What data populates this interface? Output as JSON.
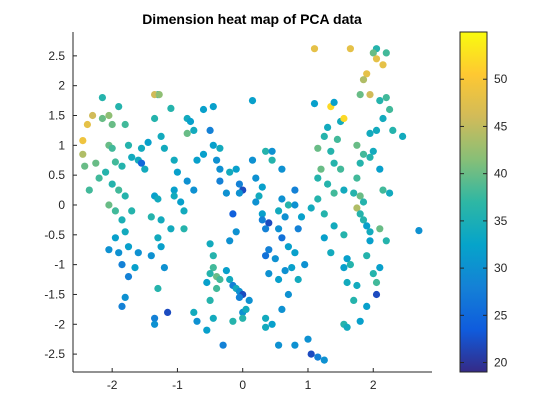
{
  "chart_data": {
    "type": "scatter",
    "title": "Dimension heat map of PCA data",
    "xlabel": "",
    "ylabel": "",
    "xlim": [
      -2.6,
      2.9
    ],
    "ylim": [
      -2.8,
      2.9
    ],
    "xticks": [
      -2,
      -1,
      0,
      1,
      2
    ],
    "yticks": [
      -2.5,
      -2,
      -1.5,
      -1,
      -0.5,
      0,
      0.5,
      1,
      1.5,
      2,
      2.5
    ],
    "grid": false,
    "colorbar": {
      "min": 19,
      "max": 55,
      "ticks": [
        20,
        25,
        30,
        35,
        40,
        45,
        50
      ],
      "colormap": "parula"
    },
    "points": [
      {
        "x": -2.45,
        "y": 1.08,
        "v": 49
      },
      {
        "x": -2.38,
        "y": 1.35,
        "v": 48
      },
      {
        "x": -2.3,
        "y": 1.5,
        "v": 46
      },
      {
        "x": -2.45,
        "y": 0.85,
        "v": 44
      },
      {
        "x": -2.42,
        "y": 0.65,
        "v": 40
      },
      {
        "x": -2.25,
        "y": 0.7,
        "v": 40
      },
      {
        "x": -2.2,
        "y": 0.45,
        "v": 38
      },
      {
        "x": -2.35,
        "y": 0.25,
        "v": 38
      },
      {
        "x": -2.15,
        "y": 1.45,
        "v": 40
      },
      {
        "x": -2.05,
        "y": 1.5,
        "v": 42
      },
      {
        "x": -2.0,
        "y": 1.35,
        "v": 40
      },
      {
        "x": -2.05,
        "y": 1.0,
        "v": 40
      },
      {
        "x": -2.0,
        "y": 0.95,
        "v": 38
      },
      {
        "x": -1.95,
        "y": 0.72,
        "v": 38
      },
      {
        "x": -1.85,
        "y": 0.65,
        "v": 36
      },
      {
        "x": -2.1,
        "y": 0.55,
        "v": 36
      },
      {
        "x": -2.0,
        "y": 0.35,
        "v": 36
      },
      {
        "x": -1.9,
        "y": 0.25,
        "v": 38
      },
      {
        "x": -1.8,
        "y": 0.15,
        "v": 36
      },
      {
        "x": -2.05,
        "y": 0.0,
        "v": 40
      },
      {
        "x": -1.95,
        "y": -0.1,
        "v": 38
      },
      {
        "x": -1.85,
        "y": -0.25,
        "v": 35
      },
      {
        "x": -1.8,
        "y": -0.45,
        "v": 34
      },
      {
        "x": -1.95,
        "y": -0.55,
        "v": 32
      },
      {
        "x": -2.05,
        "y": -0.75,
        "v": 30
      },
      {
        "x": -1.9,
        "y": -0.8,
        "v": 30
      },
      {
        "x": -1.75,
        "y": -0.7,
        "v": 32
      },
      {
        "x": -1.85,
        "y": -1.0,
        "v": 28
      },
      {
        "x": -2.15,
        "y": 1.8,
        "v": 36
      },
      {
        "x": -1.9,
        "y": 1.65,
        "v": 36
      },
      {
        "x": -1.8,
        "y": 1.35,
        "v": 38
      },
      {
        "x": -1.75,
        "y": 1.0,
        "v": 36
      },
      {
        "x": -1.7,
        "y": 0.8,
        "v": 34
      },
      {
        "x": -1.55,
        "y": 0.95,
        "v": 34
      },
      {
        "x": -1.6,
        "y": 0.75,
        "v": 34
      },
      {
        "x": -1.55,
        "y": 0.7,
        "v": 25
      },
      {
        "x": -1.5,
        "y": 0.6,
        "v": 34
      },
      {
        "x": -1.7,
        "y": -0.1,
        "v": 36
      },
      {
        "x": -1.6,
        "y": -0.8,
        "v": 30
      },
      {
        "x": -1.65,
        "y": -1.05,
        "v": 32
      },
      {
        "x": -1.75,
        "y": -1.2,
        "v": 28
      },
      {
        "x": -1.8,
        "y": -1.55,
        "v": 30
      },
      {
        "x": -1.85,
        "y": -1.7,
        "v": 28
      },
      {
        "x": -1.3,
        "y": 1.85,
        "v": 34
      },
      {
        "x": -1.35,
        "y": 1.85,
        "v": 46
      },
      {
        "x": -1.28,
        "y": 1.85,
        "v": 42
      },
      {
        "x": -1.1,
        "y": 1.62,
        "v": 36
      },
      {
        "x": -1.35,
        "y": 1.45,
        "v": 36
      },
      {
        "x": -1.25,
        "y": 1.15,
        "v": 34
      },
      {
        "x": -1.45,
        "y": 1.05,
        "v": 32
      },
      {
        "x": -1.2,
        "y": 0.95,
        "v": 34
      },
      {
        "x": -1.35,
        "y": 0.15,
        "v": 32
      },
      {
        "x": -1.3,
        "y": 0.1,
        "v": 34
      },
      {
        "x": -1.4,
        "y": -0.2,
        "v": 36
      },
      {
        "x": -1.25,
        "y": -0.25,
        "v": 34
      },
      {
        "x": -1.1,
        "y": -0.4,
        "v": 34
      },
      {
        "x": -1.3,
        "y": -0.55,
        "v": 34
      },
      {
        "x": -1.25,
        "y": -0.7,
        "v": 32
      },
      {
        "x": -1.4,
        "y": -0.85,
        "v": 30
      },
      {
        "x": -1.2,
        "y": -1.05,
        "v": 30
      },
      {
        "x": -1.05,
        "y": 0.75,
        "v": 34
      },
      {
        "x": -1.0,
        "y": 0.55,
        "v": 32
      },
      {
        "x": -1.05,
        "y": 0.25,
        "v": 32
      },
      {
        "x": -1.05,
        "y": 0.15,
        "v": 34
      },
      {
        "x": -0.95,
        "y": 0.05,
        "v": 32
      },
      {
        "x": -0.9,
        "y": -0.1,
        "v": 34
      },
      {
        "x": -0.9,
        "y": -0.4,
        "v": 36
      },
      {
        "x": -1.3,
        "y": -1.4,
        "v": 36
      },
      {
        "x": -1.35,
        "y": -1.9,
        "v": 28
      },
      {
        "x": -1.35,
        "y": -2.0,
        "v": 30
      },
      {
        "x": -1.15,
        "y": -1.8,
        "v": 22
      },
      {
        "x": -0.85,
        "y": 1.45,
        "v": 34
      },
      {
        "x": -0.8,
        "y": 1.4,
        "v": 32
      },
      {
        "x": -0.85,
        "y": 1.2,
        "v": 40
      },
      {
        "x": -0.75,
        "y": 1.25,
        "v": 34
      },
      {
        "x": -0.7,
        "y": 0.75,
        "v": 32
      },
      {
        "x": -0.6,
        "y": 0.85,
        "v": 32
      },
      {
        "x": -0.85,
        "y": 0.4,
        "v": 30
      },
      {
        "x": -0.75,
        "y": 0.25,
        "v": 30
      },
      {
        "x": -0.6,
        "y": 1.6,
        "v": 32
      },
      {
        "x": -0.45,
        "y": 1.65,
        "v": 32
      },
      {
        "x": -0.5,
        "y": 1.25,
        "v": 28
      },
      {
        "x": -0.45,
        "y": 1.0,
        "v": 32
      },
      {
        "x": -0.35,
        "y": 0.95,
        "v": 34
      },
      {
        "x": -0.4,
        "y": 0.75,
        "v": 30
      },
      {
        "x": -0.35,
        "y": 0.6,
        "v": 30
      },
      {
        "x": -0.2,
        "y": 0.55,
        "v": 34
      },
      {
        "x": -0.1,
        "y": 0.6,
        "v": 32
      },
      {
        "x": -0.35,
        "y": 0.4,
        "v": 28
      },
      {
        "x": -0.25,
        "y": 0.2,
        "v": 30
      },
      {
        "x": -0.05,
        "y": 0.35,
        "v": 28
      },
      {
        "x": 0.0,
        "y": 0.25,
        "v": 22
      },
      {
        "x": -0.05,
        "y": 0.2,
        "v": 30
      },
      {
        "x": -0.15,
        "y": -0.15,
        "v": 24
      },
      {
        "x": -0.1,
        "y": -0.45,
        "v": 30
      },
      {
        "x": -0.5,
        "y": -0.65,
        "v": 34
      },
      {
        "x": -0.45,
        "y": -0.85,
        "v": 36
      },
      {
        "x": -0.45,
        "y": -1.05,
        "v": 38
      },
      {
        "x": -0.4,
        "y": -1.2,
        "v": 40
      },
      {
        "x": -0.4,
        "y": -1.4,
        "v": 38
      },
      {
        "x": -0.5,
        "y": -1.15,
        "v": 36
      },
      {
        "x": -0.55,
        "y": -1.3,
        "v": 32
      },
      {
        "x": -0.35,
        "y": -1.25,
        "v": 38
      },
      {
        "x": -0.2,
        "y": -0.6,
        "v": 30
      },
      {
        "x": -0.25,
        "y": -1.1,
        "v": 32
      },
      {
        "x": -0.2,
        "y": -1.25,
        "v": 34
      },
      {
        "x": -0.15,
        "y": -1.35,
        "v": 28
      },
      {
        "x": -0.1,
        "y": -1.4,
        "v": 34
      },
      {
        "x": -0.05,
        "y": -1.45,
        "v": 30
      },
      {
        "x": 0.0,
        "y": -1.5,
        "v": 22
      },
      {
        "x": -0.05,
        "y": -1.55,
        "v": 28
      },
      {
        "x": -0.5,
        "y": -1.6,
        "v": 36
      },
      {
        "x": -0.45,
        "y": -1.9,
        "v": 34
      },
      {
        "x": -0.15,
        "y": -1.95,
        "v": 36
      },
      {
        "x": -0.75,
        "y": -1.8,
        "v": 34
      },
      {
        "x": -0.7,
        "y": -1.95,
        "v": 30
      },
      {
        "x": -0.55,
        "y": -2.1,
        "v": 32
      },
      {
        "x": -0.3,
        "y": -2.35,
        "v": 28
      },
      {
        "x": 0.0,
        "y": -1.8,
        "v": 30
      },
      {
        "x": 0.0,
        "y": -1.9,
        "v": 36
      },
      {
        "x": 0.05,
        "y": -1.75,
        "v": 34
      },
      {
        "x": 0.1,
        "y": -1.6,
        "v": 30
      },
      {
        "x": 0.15,
        "y": 1.75,
        "v": 32
      },
      {
        "x": 0.15,
        "y": 0.75,
        "v": 30
      },
      {
        "x": 0.2,
        "y": 0.45,
        "v": 30
      },
      {
        "x": 0.35,
        "y": 0.9,
        "v": 36
      },
      {
        "x": 0.45,
        "y": 0.9,
        "v": 30
      },
      {
        "x": 0.45,
        "y": 0.75,
        "v": 36
      },
      {
        "x": 0.6,
        "y": 0.6,
        "v": 30
      },
      {
        "x": 0.3,
        "y": 0.3,
        "v": 32
      },
      {
        "x": 0.25,
        "y": 0.15,
        "v": 34
      },
      {
        "x": 0.2,
        "y": 0.05,
        "v": 30
      },
      {
        "x": 0.3,
        "y": -0.15,
        "v": 32
      },
      {
        "x": 0.3,
        "y": -0.25,
        "v": 28
      },
      {
        "x": 0.4,
        "y": -0.3,
        "v": 22
      },
      {
        "x": 0.35,
        "y": -0.4,
        "v": 28
      },
      {
        "x": 0.55,
        "y": -0.4,
        "v": 30
      },
      {
        "x": 0.6,
        "y": 0.1,
        "v": 30
      },
      {
        "x": 0.55,
        "y": -0.1,
        "v": 34
      },
      {
        "x": 0.65,
        "y": -0.2,
        "v": 30
      },
      {
        "x": 0.7,
        "y": 0.0,
        "v": 36
      },
      {
        "x": 0.8,
        "y": 0.25,
        "v": 28
      },
      {
        "x": 0.8,
        "y": 0.0,
        "v": 30
      },
      {
        "x": 0.9,
        "y": -0.2,
        "v": 32
      },
      {
        "x": 0.85,
        "y": -0.4,
        "v": 28
      },
      {
        "x": 0.6,
        "y": -0.55,
        "v": 26
      },
      {
        "x": 0.7,
        "y": -0.7,
        "v": 32
      },
      {
        "x": 0.4,
        "y": -0.75,
        "v": 28
      },
      {
        "x": 0.35,
        "y": -0.85,
        "v": 26
      },
      {
        "x": 0.5,
        "y": -0.9,
        "v": 30
      },
      {
        "x": 0.4,
        "y": -1.15,
        "v": 30
      },
      {
        "x": 0.55,
        "y": -1.25,
        "v": 32
      },
      {
        "x": 0.65,
        "y": -1.1,
        "v": 30
      },
      {
        "x": 0.75,
        "y": -1.05,
        "v": 32
      },
      {
        "x": 0.8,
        "y": -0.8,
        "v": 32
      },
      {
        "x": 0.85,
        "y": -1.25,
        "v": 34
      },
      {
        "x": 0.95,
        "y": -1.0,
        "v": 30
      },
      {
        "x": 0.7,
        "y": -1.5,
        "v": 30
      },
      {
        "x": 0.6,
        "y": -1.75,
        "v": 30
      },
      {
        "x": 0.45,
        "y": -2.0,
        "v": 32
      },
      {
        "x": 0.35,
        "y": -2.05,
        "v": 34
      },
      {
        "x": 0.35,
        "y": -1.9,
        "v": 34
      },
      {
        "x": 0.55,
        "y": -2.35,
        "v": 30
      },
      {
        "x": 0.8,
        "y": -2.35,
        "v": 30
      },
      {
        "x": 1.0,
        "y": -2.25,
        "v": 30
      },
      {
        "x": 1.15,
        "y": -2.55,
        "v": 28
      },
      {
        "x": 1.25,
        "y": -2.6,
        "v": 30
      },
      {
        "x": 1.05,
        "y": -2.5,
        "v": 22
      },
      {
        "x": 1.1,
        "y": 2.62,
        "v": 48
      },
      {
        "x": 1.65,
        "y": 2.62,
        "v": 48
      },
      {
        "x": 1.1,
        "y": 1.7,
        "v": 32
      },
      {
        "x": 1.35,
        "y": 1.65,
        "v": 52
      },
      {
        "x": 1.4,
        "y": 1.72,
        "v": 32
      },
      {
        "x": 1.5,
        "y": 1.4,
        "v": 34
      },
      {
        "x": 1.55,
        "y": 1.45,
        "v": 52
      },
      {
        "x": 1.3,
        "y": 1.3,
        "v": 34
      },
      {
        "x": 1.45,
        "y": 1.1,
        "v": 38
      },
      {
        "x": 1.25,
        "y": 1.15,
        "v": 36
      },
      {
        "x": 1.15,
        "y": 0.95,
        "v": 40
      },
      {
        "x": 1.35,
        "y": 0.9,
        "v": 36
      },
      {
        "x": 1.4,
        "y": 0.7,
        "v": 36
      },
      {
        "x": 1.5,
        "y": 0.6,
        "v": 38
      },
      {
        "x": 1.2,
        "y": 0.6,
        "v": 40
      },
      {
        "x": 1.15,
        "y": 0.45,
        "v": 36
      },
      {
        "x": 1.3,
        "y": 0.35,
        "v": 36
      },
      {
        "x": 1.4,
        "y": 0.2,
        "v": 38
      },
      {
        "x": 1.55,
        "y": 0.25,
        "v": 34
      },
      {
        "x": 1.15,
        "y": 0.1,
        "v": 36
      },
      {
        "x": 1.05,
        "y": -0.05,
        "v": 34
      },
      {
        "x": 1.25,
        "y": -0.15,
        "v": 36
      },
      {
        "x": 1.4,
        "y": -0.35,
        "v": 34
      },
      {
        "x": 1.55,
        "y": -0.5,
        "v": 36
      },
      {
        "x": 1.25,
        "y": -0.55,
        "v": 32
      },
      {
        "x": 1.35,
        "y": -0.8,
        "v": 34
      },
      {
        "x": 1.6,
        "y": -0.9,
        "v": 32
      },
      {
        "x": 1.55,
        "y": -1.05,
        "v": 32
      },
      {
        "x": 1.65,
        "y": -1.0,
        "v": 36
      },
      {
        "x": 1.6,
        "y": -1.3,
        "v": 34
      },
      {
        "x": 1.75,
        "y": -1.35,
        "v": 34
      },
      {
        "x": 1.7,
        "y": -1.6,
        "v": 36
      },
      {
        "x": 1.55,
        "y": -2.0,
        "v": 36
      },
      {
        "x": 1.6,
        "y": -2.05,
        "v": 34
      },
      {
        "x": 1.8,
        "y": -1.95,
        "v": 32
      },
      {
        "x": 1.9,
        "y": -1.7,
        "v": 32
      },
      {
        "x": 1.75,
        "y": 0.45,
        "v": 38
      },
      {
        "x": 1.8,
        "y": 0.15,
        "v": 40
      },
      {
        "x": 1.7,
        "y": 0.2,
        "v": 36
      },
      {
        "x": 1.85,
        "y": 0.05,
        "v": 36
      },
      {
        "x": 1.75,
        "y": -0.05,
        "v": 44
      },
      {
        "x": 1.8,
        "y": -0.15,
        "v": 36
      },
      {
        "x": 1.85,
        "y": -0.25,
        "v": 36
      },
      {
        "x": 1.9,
        "y": -0.35,
        "v": 32
      },
      {
        "x": 1.95,
        "y": -0.45,
        "v": 34
      },
      {
        "x": 1.95,
        "y": -0.6,
        "v": 32
      },
      {
        "x": 1.9,
        "y": -0.85,
        "v": 36
      },
      {
        "x": 2.0,
        "y": -1.15,
        "v": 36
      },
      {
        "x": 2.05,
        "y": -1.3,
        "v": 38
      },
      {
        "x": 2.05,
        "y": -1.5,
        "v": 22
      },
      {
        "x": 2.1,
        "y": -0.4,
        "v": 40
      },
      {
        "x": 2.2,
        "y": -0.6,
        "v": 36
      },
      {
        "x": 2.1,
        "y": -1.05,
        "v": 32
      },
      {
        "x": 2.05,
        "y": 2.62,
        "v": 36
      },
      {
        "x": 2.0,
        "y": 2.55,
        "v": 40
      },
      {
        "x": 2.05,
        "y": 2.45,
        "v": 48
      },
      {
        "x": 2.2,
        "y": 2.55,
        "v": 38
      },
      {
        "x": 2.15,
        "y": 2.35,
        "v": 48
      },
      {
        "x": 1.9,
        "y": 2.2,
        "v": 48
      },
      {
        "x": 1.85,
        "y": 2.1,
        "v": 44
      },
      {
        "x": 1.8,
        "y": 1.85,
        "v": 40
      },
      {
        "x": 1.95,
        "y": 1.85,
        "v": 46
      },
      {
        "x": 2.1,
        "y": 1.75,
        "v": 36
      },
      {
        "x": 2.2,
        "y": 1.8,
        "v": 38
      },
      {
        "x": 2.25,
        "y": 1.6,
        "v": 38
      },
      {
        "x": 2.15,
        "y": 1.45,
        "v": 34
      },
      {
        "x": 2.05,
        "y": 1.25,
        "v": 34
      },
      {
        "x": 1.95,
        "y": 1.2,
        "v": 34
      },
      {
        "x": 2.3,
        "y": 1.25,
        "v": 36
      },
      {
        "x": 2.45,
        "y": 1.15,
        "v": 34
      },
      {
        "x": 1.75,
        "y": 1.0,
        "v": 40
      },
      {
        "x": 1.85,
        "y": 0.85,
        "v": 38
      },
      {
        "x": 1.95,
        "y": 0.8,
        "v": 36
      },
      {
        "x": 2.0,
        "y": 0.9,
        "v": 34
      },
      {
        "x": 1.8,
        "y": 0.7,
        "v": 36
      },
      {
        "x": 2.1,
        "y": 0.6,
        "v": 32
      },
      {
        "x": 2.15,
        "y": 0.25,
        "v": 38
      },
      {
        "x": 2.25,
        "y": 0.2,
        "v": 34
      },
      {
        "x": 2.7,
        "y": -0.43,
        "v": 30
      }
    ]
  }
}
